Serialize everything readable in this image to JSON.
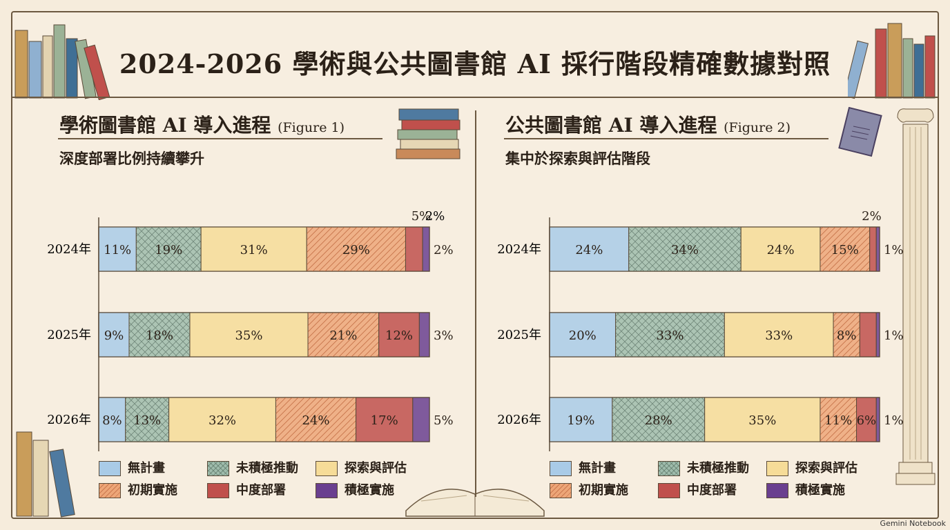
{
  "title": "2024-2026 學術與公共圖書館 AI 採行階段精確數據對照",
  "panels": [
    {
      "title": "學術圖書館 AI 導入進程",
      "figure": "(Figure 1)",
      "subtitle": "深度部署比例持續攀升"
    },
    {
      "title": "公共圖書館 AI 導入進程",
      "figure": "(Figure 2)",
      "subtitle": "集中於探索與評估階段"
    }
  ],
  "legend": [
    "無計畫",
    "未積極推動",
    "探索與評估",
    "初期實施",
    "中度部署",
    "積極實施"
  ],
  "colors": {
    "無計畫": "#a9cbe7",
    "未積極推動": "#9fbcac",
    "探索與評估": "#f6dc98",
    "初期實施": "#eda678",
    "中度部署": "#c0504c",
    "積極實施": "#6a3f8f"
  },
  "brand": "Gemini Notebook",
  "chart_data": [
    {
      "type": "bar",
      "orientation": "horizontal",
      "stacked": true,
      "title": "學術圖書館 AI 導入進程",
      "categories": [
        "2024年",
        "2025年",
        "2026年"
      ],
      "series": [
        {
          "name": "無計畫",
          "values": [
            11,
            9,
            8
          ]
        },
        {
          "name": "未積極推動",
          "values": [
            19,
            18,
            13
          ]
        },
        {
          "name": "探索與評估",
          "values": [
            31,
            35,
            32
          ]
        },
        {
          "name": "初期實施",
          "values": [
            29,
            21,
            24
          ]
        },
        {
          "name": "中度部署",
          "values": [
            5,
            12,
            17
          ]
        },
        {
          "name": "積極實施",
          "values": [
            2,
            3,
            5
          ]
        }
      ],
      "value_labels": [
        [
          "11%",
          "19%",
          "31%",
          "29%",
          "5%",
          "2%"
        ],
        [
          "9%",
          "18%",
          "35%",
          "21%",
          "12%",
          "3%"
        ],
        [
          "8%",
          "13%",
          "32%",
          "24%",
          "17%",
          "5%"
        ]
      ],
      "unit": "%",
      "legend_position": "bottom"
    },
    {
      "type": "bar",
      "orientation": "horizontal",
      "stacked": true,
      "title": "公共圖書館 AI 導入進程",
      "categories": [
        "2024年",
        "2025年",
        "2026年"
      ],
      "series": [
        {
          "name": "無計畫",
          "values": [
            24,
            20,
            19
          ]
        },
        {
          "name": "未積極推動",
          "values": [
            34,
            33,
            28
          ]
        },
        {
          "name": "探索與評估",
          "values": [
            24,
            33,
            35
          ]
        },
        {
          "name": "初期實施",
          "values": [
            15,
            8,
            11
          ]
        },
        {
          "name": "中度部署",
          "values": [
            2,
            5,
            6
          ]
        },
        {
          "name": "積極實施",
          "values": [
            1,
            1,
            1
          ]
        }
      ],
      "value_labels": [
        [
          "24%",
          "34%",
          "24%",
          "15%",
          "2%",
          "1%"
        ],
        [
          "20%",
          "33%",
          "33%",
          "8%",
          "",
          "1%"
        ],
        [
          "19%",
          "28%",
          "35%",
          "11%",
          "6%",
          "1%"
        ]
      ],
      "unit": "%",
      "legend_position": "bottom"
    }
  ]
}
